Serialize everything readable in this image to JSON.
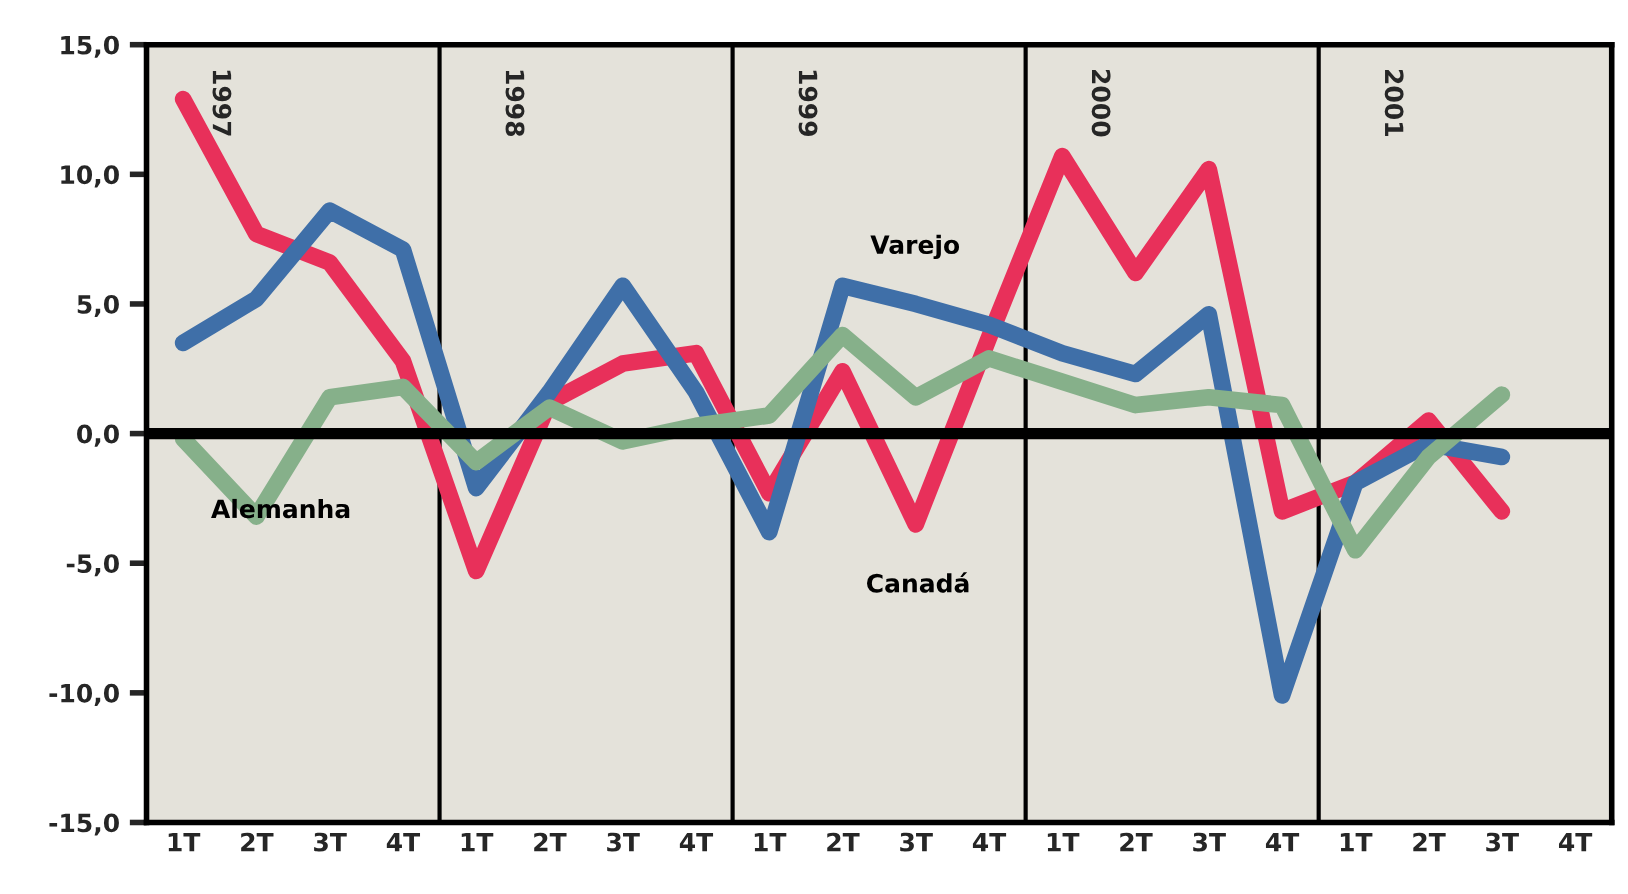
{
  "chart_data": {
    "type": "line",
    "categories": [
      "1T",
      "2T",
      "3T",
      "4T",
      "1T",
      "2T",
      "3T",
      "4T",
      "1T",
      "2T",
      "3T",
      "4T",
      "1T",
      "2T",
      "3T",
      "4T",
      "1T",
      "2T",
      "3T",
      "4T"
    ],
    "series": [
      {
        "name": "Canadá",
        "color": "#e8305a",
        "values": [
          12.9,
          7.7,
          6.6,
          2.8,
          -5.3,
          1.2,
          2.7,
          3.1,
          -2.3,
          2.4,
          -3.5,
          3.7,
          10.7,
          6.2,
          10.2,
          -3.0,
          -1.9,
          0.5,
          -3.0,
          null
        ]
      },
      {
        "name": "Varejo",
        "color": "#3f6fa8",
        "values": [
          3.5,
          5.2,
          8.6,
          7.1,
          -2.1,
          1.6,
          5.7,
          1.6,
          -3.8,
          5.7,
          5.0,
          4.2,
          3.1,
          2.3,
          4.6,
          -10.1,
          -1.9,
          -0.4,
          -0.9,
          null
        ]
      },
      {
        "name": "Alemanha",
        "color": "#86b08a",
        "values": [
          -0.2,
          -3.2,
          1.4,
          1.8,
          -1.1,
          1.0,
          -0.3,
          0.3,
          0.7,
          3.8,
          1.4,
          2.9,
          2.0,
          1.1,
          1.4,
          1.1,
          -4.5,
          -0.9,
          1.5,
          null
        ]
      }
    ],
    "annotations": [
      "1997",
      "1998",
      "1999",
      "2000",
      "2001"
    ],
    "ref_lines": [
      {
        "axis": "y",
        "value": 0,
        "color": "#000000"
      }
    ],
    "ylim": [
      -15,
      15
    ],
    "yticks": [
      {
        "value": -15,
        "label": "-15,0"
      },
      {
        "value": -10,
        "label": "-10,0"
      },
      {
        "value": -5,
        "label": "-5,0"
      },
      {
        "value": 0,
        "label": "0,0"
      },
      {
        "value": 5,
        "label": "5,0"
      },
      {
        "value": 10,
        "label": "10,0"
      },
      {
        "value": 15,
        "label": "15,0"
      }
    ],
    "grid": false,
    "legend": false,
    "marker": "none",
    "line_style": "solid"
  }
}
